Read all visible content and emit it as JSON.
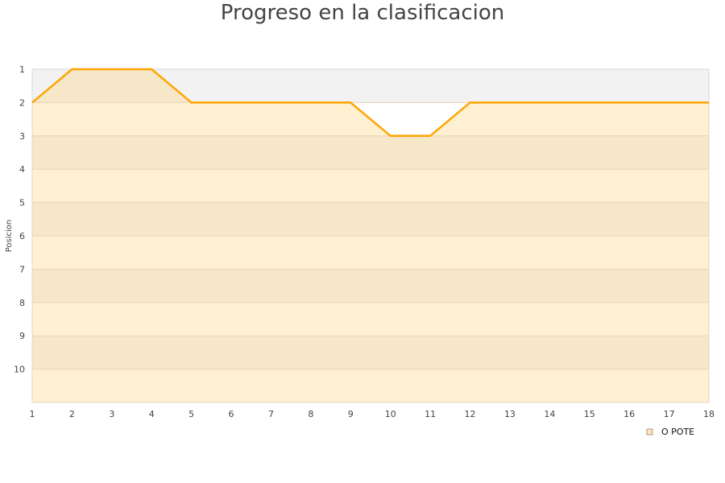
{
  "chart_data": {
    "type": "area",
    "title": "Progreso en la clasificacion",
    "xlabel": "",
    "ylabel": "Posicion",
    "x": [
      1,
      2,
      3,
      4,
      5,
      6,
      7,
      8,
      9,
      10,
      11,
      12,
      13,
      14,
      15,
      16,
      17,
      18
    ],
    "series": [
      {
        "name": "O POTE",
        "values": [
          2,
          1,
          1,
          1,
          2,
          2,
          2,
          2,
          2,
          3,
          3,
          2,
          2,
          2,
          2,
          2,
          2,
          2
        ]
      }
    ],
    "xlim": [
      1,
      18
    ],
    "ylim": [
      1,
      11
    ],
    "y_reversed": true,
    "y_ticks": [
      1,
      2,
      3,
      4,
      5,
      6,
      7,
      8,
      9,
      10
    ],
    "legend_position": "bottom-right",
    "colors": {
      "line": "#ffa500",
      "fill": "#ffcc66",
      "band": "#f2f2f2"
    }
  }
}
